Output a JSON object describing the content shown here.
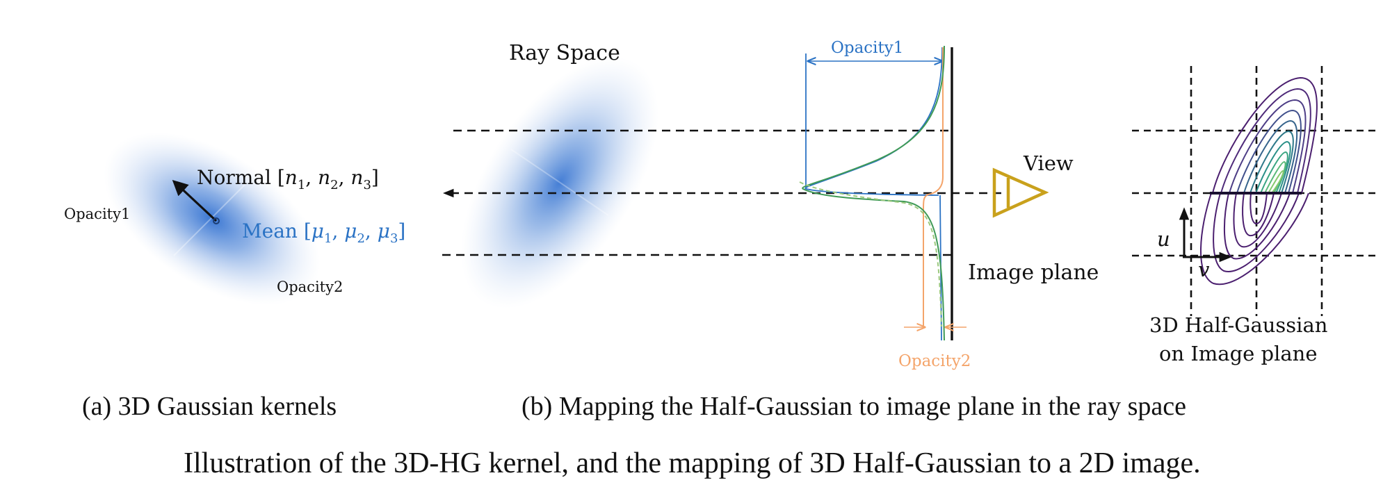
{
  "panel_a": {
    "normal_label": "Normal [",
    "normal_vars": [
      "n",
      "1",
      "n",
      "2",
      "n",
      "3"
    ],
    "mean_label": "Mean [",
    "mean_vars": [
      "μ",
      "1",
      "μ",
      "2",
      "μ",
      "3"
    ],
    "opacity1": "Opacity1",
    "opacity2": "Opacity2",
    "caption": "(a) 3D Gaussian kernels"
  },
  "panel_b": {
    "ray_space": "Ray Space",
    "opacity1": "Opacity1",
    "opacity2": "Opacity2",
    "view": "View",
    "image_plane": "Image plane",
    "caption": "(b) Mapping the Half-Gaussian to image plane in the ray space"
  },
  "panel_c": {
    "axis_u": "u",
    "axis_v": "v",
    "label_line1": "3D Half-Gaussian",
    "label_line2": "on Image plane"
  },
  "figure_caption": "Illustration of the 3D-HG kernel, and the mapping of 3D Half-Gaussian to a 2D image.",
  "colors": {
    "blue": "#2a72c4",
    "orange": "#f4a46a",
    "green": "#3f9a56",
    "gold": "#c9a11c",
    "purple": "#4b1f6f",
    "teal": "#3fb59a"
  }
}
